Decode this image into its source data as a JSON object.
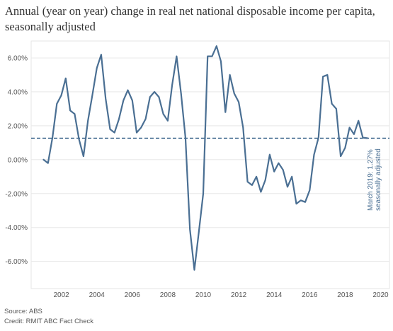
{
  "chart_data": {
    "type": "line",
    "title": "Annual (year on year) change in real net national disposable income per capita, seasonally adjusted",
    "xlabel": "",
    "ylabel": "",
    "x_tick_labels": [
      "2002",
      "2004",
      "2006",
      "2008",
      "2010",
      "2012",
      "2014",
      "2016",
      "2018",
      "2020"
    ],
    "x_ticks": [
      2002,
      2004,
      2006,
      2008,
      2010,
      2012,
      2014,
      2016,
      2018,
      2020
    ],
    "y_tick_labels": [
      "6.00%",
      "4.00%",
      "2.00%",
      "0.00%",
      "-2.00%",
      "-4.00%",
      "-6.00%"
    ],
    "y_ticks": [
      6,
      4,
      2,
      0,
      -2,
      -4,
      -6
    ],
    "xlim": [
      2000.3,
      2020.5
    ],
    "ylim": [
      -7.6,
      7.0
    ],
    "grid": {
      "horizontal": true,
      "vertical": false
    },
    "series": [
      {
        "color": "#4a6f93",
        "x": [
          2001.0,
          2001.25,
          2001.5,
          2001.75,
          2002.0,
          2002.25,
          2002.5,
          2002.75,
          2003.0,
          2003.25,
          2003.5,
          2003.75,
          2004.0,
          2004.25,
          2004.5,
          2004.75,
          2005.0,
          2005.25,
          2005.5,
          2005.75,
          2006.0,
          2006.25,
          2006.5,
          2006.75,
          2007.0,
          2007.25,
          2007.5,
          2007.75,
          2008.0,
          2008.25,
          2008.5,
          2008.75,
          2009.0,
          2009.25,
          2009.5,
          2009.75,
          2010.0,
          2010.25,
          2010.5,
          2010.75,
          2011.0,
          2011.25,
          2011.5,
          2011.75,
          2012.0,
          2012.25,
          2012.5,
          2012.75,
          2013.0,
          2013.25,
          2013.5,
          2013.75,
          2014.0,
          2014.25,
          2014.5,
          2014.75,
          2015.0,
          2015.25,
          2015.5,
          2015.75,
          2016.0,
          2016.25,
          2016.5,
          2016.75,
          2017.0,
          2017.25,
          2017.5,
          2017.75,
          2018.0,
          2018.25,
          2018.5,
          2018.75,
          2019.0,
          2019.25
        ],
        "y": [
          0.0,
          -0.2,
          1.3,
          3.3,
          3.8,
          4.8,
          2.9,
          2.7,
          1.2,
          0.2,
          2.3,
          3.8,
          5.4,
          6.2,
          3.6,
          1.8,
          1.6,
          2.4,
          3.5,
          4.1,
          3.5,
          1.6,
          1.9,
          2.4,
          3.7,
          4.0,
          3.7,
          2.7,
          2.3,
          4.4,
          6.1,
          3.9,
          1.3,
          -4.1,
          -6.5,
          -4.3,
          -2.0,
          6.1,
          6.1,
          6.7,
          5.8,
          2.8,
          5.0,
          3.9,
          3.4,
          1.9,
          -1.3,
          -1.5,
          -1.0,
          -1.9,
          -1.2,
          0.3,
          -0.7,
          -0.2,
          -0.6,
          -1.6,
          -1.0,
          -2.6,
          -2.4,
          -2.5,
          -1.8,
          0.3,
          1.3,
          4.9,
          5.0,
          3.3,
          3.0,
          0.2,
          0.7,
          1.9,
          1.5,
          2.3,
          1.3,
          1.27
        ]
      }
    ],
    "reference_line": {
      "value": 1.27,
      "color": "#2e5a84",
      "label_line1": "March 2019: 1.27%",
      "label_line2": "seasonally adjusted"
    }
  },
  "footer": {
    "source": "Source: ABS",
    "credit": "Credit: RMIT ABC Fact Check"
  }
}
